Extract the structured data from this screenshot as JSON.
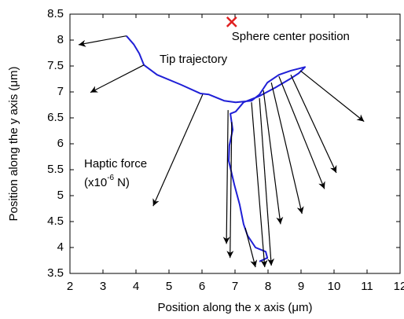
{
  "chart_data": {
    "type": "line",
    "xlabel": "Position along the x axis (μm)",
    "ylabel": "Position along the y axis (μm)",
    "xlim": [
      2,
      12
    ],
    "ylim": [
      3.5,
      8.5
    ],
    "xticks": [
      2,
      3,
      4,
      5,
      6,
      7,
      8,
      9,
      10,
      11,
      12
    ],
    "yticks": [
      3.5,
      4,
      4.5,
      5,
      5.5,
      6,
      6.5,
      7,
      7.5,
      8,
      8.5
    ],
    "series": [
      {
        "color": "#1f1fd6",
        "x": [
          3.71,
          3.93,
          4.1,
          4.24,
          4.64,
          5.36,
          5.95,
          6.21,
          6.67,
          7.02,
          7.5,
          7.74,
          7.98,
          8.33,
          8.69,
          9.12,
          8.93,
          8.69,
          8.21,
          7.74,
          7.26,
          7.02,
          6.86,
          6.93,
          6.83,
          6.81,
          6.98,
          7.14,
          7.26,
          7.38,
          7.62,
          7.93,
          7.98,
          7.74
        ],
        "values": [
          8.08,
          7.92,
          7.74,
          7.52,
          7.33,
          7.14,
          6.97,
          6.95,
          6.83,
          6.8,
          6.83,
          6.95,
          7.18,
          7.33,
          7.41,
          7.48,
          7.36,
          7.26,
          7.08,
          6.92,
          6.8,
          6.62,
          6.58,
          6.27,
          5.97,
          5.67,
          5.21,
          4.83,
          4.45,
          4.23,
          4.0,
          3.92,
          3.8,
          3.73
        ]
      }
    ],
    "arrows": {
      "color": "#000000",
      "x": [
        3.71,
        4.24,
        6.02,
        6.79,
        6.9,
        7.31,
        7.5,
        7.74,
        7.86,
        8.1,
        8.33,
        8.69,
        8.98
      ],
      "y": [
        8.08,
        7.52,
        6.95,
        6.65,
        6.42,
        4.38,
        6.8,
        6.88,
        7.03,
        7.18,
        7.3,
        7.33,
        7.41
      ],
      "u": [
        -1.45,
        -1.62,
        -1.5,
        -0.05,
        -0.05,
        0.31,
        0.4,
        0.36,
        0.52,
        0.93,
        1.38,
        1.38,
        1.93
      ],
      "v": [
        -0.17,
        -0.53,
        -2.15,
        -2.58,
        -2.62,
        -0.76,
        -3.18,
        -3.23,
        -2.58,
        -2.53,
        -2.17,
        -1.89,
        -0.98
      ]
    },
    "sphere": {
      "x": 6.9,
      "y": 8.35,
      "color": "#e02020",
      "label": "Sphere center position"
    },
    "annotations": {
      "trajectory": "Tip trajectory",
      "force": "Haptic force",
      "unit_pre": "(x10",
      "unit_exp": "-6",
      "unit_post": "N)"
    }
  }
}
